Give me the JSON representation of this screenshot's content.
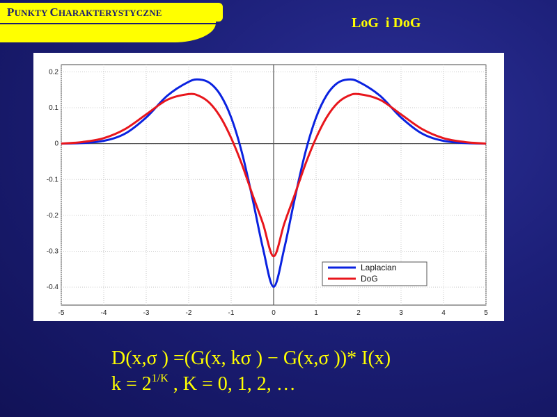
{
  "header": {
    "section_first": "P",
    "section_mid": "UNKTY ",
    "section_second": "C",
    "section_rest": "HARAKTERYSTYCZNE",
    "slide_title": "LoG  i DoG"
  },
  "chart_data": {
    "type": "line",
    "title": "",
    "xlabel": "",
    "ylabel": "",
    "xlim": [
      -5,
      5
    ],
    "ylim": [
      -0.45,
      0.22
    ],
    "grid": true,
    "legend_position": "bottom-right",
    "x_ticks": [
      "-5",
      "-4",
      "-3",
      "-2",
      "-1",
      "0",
      "1",
      "2",
      "3",
      "4",
      "5"
    ],
    "y_ticks": [
      "0.2",
      "0.1",
      "0",
      "-0.1",
      "-0.2",
      "-0.3",
      "-0.4"
    ],
    "x_tick_values": [
      -5,
      -4,
      -3,
      -2,
      -1,
      0,
      1,
      2,
      3,
      4,
      5
    ],
    "y_tick_values": [
      0.2,
      0.1,
      0,
      -0.1,
      -0.2,
      -0.3,
      -0.4
    ],
    "x": [
      -5,
      -4.5,
      -4,
      -3.5,
      -3,
      -2.5,
      -2,
      -1.75,
      -1.5,
      -1.25,
      -1,
      -0.75,
      -0.5,
      -0.25,
      0,
      0.25,
      0.5,
      0.75,
      1,
      1.25,
      1.5,
      1.75,
      2,
      2.5,
      3,
      3.5,
      4,
      4.5,
      5
    ],
    "series": [
      {
        "name": "Laplacian",
        "color": "#0a22e0",
        "values": [
          0.0,
          0.0016,
          0.0077,
          0.0276,
          0.0729,
          0.1338,
          0.1722,
          0.1786,
          0.1685,
          0.1352,
          0.0728,
          -0.0235,
          -0.1518,
          -0.2923,
          -0.3989,
          -0.2923,
          -0.1518,
          -0.0235,
          0.0728,
          0.1352,
          0.1685,
          0.1786,
          0.1722,
          0.1338,
          0.0729,
          0.0276,
          0.0077,
          0.0016,
          0.0
        ]
      },
      {
        "name": "DoG",
        "color": "#e8161c",
        "values": [
          0.0,
          0.0044,
          0.0151,
          0.0402,
          0.0813,
          0.1223,
          0.138,
          0.1326,
          0.1124,
          0.0734,
          0.0156,
          -0.0568,
          -0.1414,
          -0.2233,
          -0.3141,
          -0.2233,
          -0.1414,
          -0.0568,
          0.0156,
          0.0734,
          0.1124,
          0.1326,
          0.138,
          0.1223,
          0.0813,
          0.0402,
          0.0151,
          0.0044,
          0.0
        ]
      }
    ]
  },
  "formula": {
    "line1": "D(x,σ ) =(G(x, kσ ) − G(x,σ ))* I(x)",
    "line2_pre": "k = 2",
    "line2_sup": "1/K",
    "line2_post": " , K = 0, 1, 2, …"
  }
}
